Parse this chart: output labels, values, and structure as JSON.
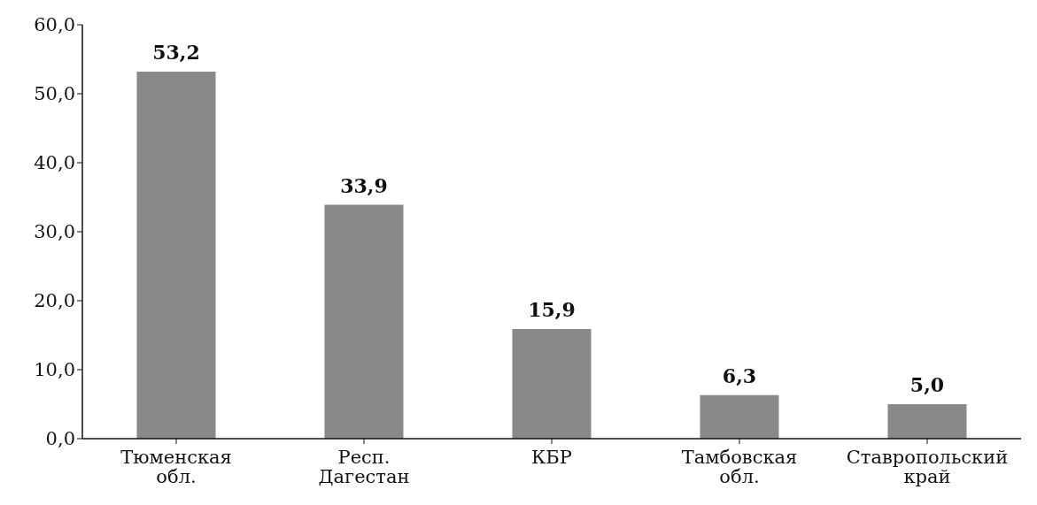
{
  "chart_data": {
    "type": "bar",
    "categories": [
      "Тюменская\nобл.",
      "Респ.\nДагестан",
      "КБР",
      "Тамбовская\nобл.",
      "Ставропольский\nкрай"
    ],
    "values": [
      53.2,
      33.9,
      15.9,
      6.3,
      5.0
    ],
    "color": "#898989",
    "value_labels": [
      "53,2",
      "33,9",
      "15,9",
      "6,3",
      "5,0"
    ],
    "ylim": [
      0,
      60
    ],
    "yticks": [
      {
        "value": 0,
        "label": "0,0"
      },
      {
        "value": 10,
        "label": "10,0"
      },
      {
        "value": 20,
        "label": "20,0"
      },
      {
        "value": 30,
        "label": "30,0"
      },
      {
        "value": 40,
        "label": "40,0"
      },
      {
        "value": 50,
        "label": "50,0"
      },
      {
        "value": 60,
        "label": "60,0"
      }
    ],
    "grid": false,
    "legend": false
  }
}
